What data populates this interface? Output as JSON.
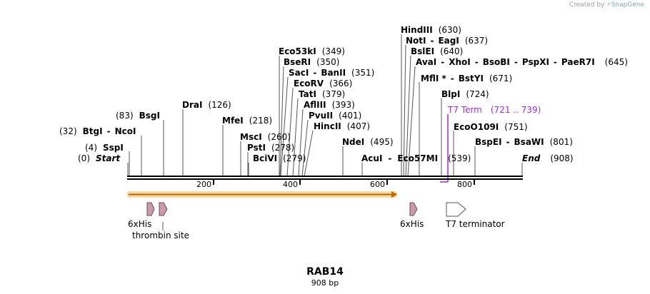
{
  "credit_prefix": "Created by",
  "credit_brand": "SnapGene",
  "title": "RAB14",
  "length_label": "908 bp",
  "total_bp": 908,
  "ticks": [
    {
      "label": "200",
      "bp": 200
    },
    {
      "label": "400",
      "bp": 400
    },
    {
      "label": "600",
      "bp": 600
    },
    {
      "label": "800",
      "bp": 800
    }
  ],
  "sites": [
    {
      "id": "hindiii",
      "name": "HindIII",
      "pos": "(630)",
      "bp": 630
    },
    {
      "id": "noti",
      "name": "NotI",
      "name2": "EagI",
      "pos": "(637)",
      "bp": 637
    },
    {
      "id": "bslei",
      "name": "BslEI",
      "pos": "(640)",
      "bp": 640
    },
    {
      "id": "avai",
      "name": "AvaI",
      "name2": "XhoI",
      "name3": "BsoBI",
      "name4": "PspXI",
      "name5": "PaeR7I",
      "pos": "(645)",
      "bp": 645
    },
    {
      "id": "mfli",
      "name": "MflI *",
      "name2": "BstYI",
      "pos": "(671)",
      "bp": 671
    },
    {
      "id": "blpi",
      "name": "BlpI",
      "pos": "(724)",
      "bp": 724
    },
    {
      "id": "t7term",
      "name": "T7 Term",
      "pos": "(721 .. 739)",
      "bp": 730
    },
    {
      "id": "eco53ki",
      "name": "Eco53kI",
      "pos": "(349)",
      "bp": 349
    },
    {
      "id": "beri",
      "name": "BseRI",
      "pos": "(350)",
      "bp": 350
    },
    {
      "id": "saci",
      "name": "SacI",
      "name2": "BanII",
      "pos": "(351)",
      "bp": 351
    },
    {
      "id": "ecorv",
      "name": "EcoRV",
      "pos": "(366)",
      "bp": 366
    },
    {
      "id": "tati",
      "name": "TatI",
      "pos": "(379)",
      "bp": 379
    },
    {
      "id": "aflii",
      "name": "AflIII",
      "pos": "(393)",
      "bp": 393
    },
    {
      "id": "pvuii",
      "name": "PvuII",
      "pos": "(401)",
      "bp": 401
    },
    {
      "id": "hincii",
      "name": "HincII",
      "pos": "(407)",
      "bp": 407
    },
    {
      "id": "drai",
      "name": "DraI",
      "pos": "(126)",
      "bp": 126
    },
    {
      "id": "bsgi",
      "name": "BsgI",
      "pos": "(83)",
      "bp": 83
    },
    {
      "id": "mfei",
      "name": "MfeI",
      "pos": "(218)",
      "bp": 218
    },
    {
      "id": "ecoo109i",
      "name": "EcoO109I",
      "pos": "(751)",
      "bp": 751
    },
    {
      "id": "btgi",
      "name": "BtgI",
      "name2": "NcoI",
      "pos": "(32)",
      "bp": 32
    },
    {
      "id": "msci",
      "name": "MscI",
      "pos": "(260)",
      "bp": 260
    },
    {
      "id": "ndei",
      "name": "NdeI",
      "pos": "(495)",
      "bp": 495
    },
    {
      "id": "bspei",
      "name": "BspEI",
      "name2": "BsaWI",
      "pos": "(801)",
      "bp": 801
    },
    {
      "id": "sspi",
      "name": "SspI",
      "pos": "(4)",
      "bp": 4
    },
    {
      "id": "psti",
      "name": "PstI",
      "pos": "(278)",
      "bp": 278
    },
    {
      "id": "start",
      "name": "Start",
      "pos": "(0)",
      "bp": 0
    },
    {
      "id": "bcivi",
      "name": "BciVI",
      "pos": "(279)",
      "bp": 279
    },
    {
      "id": "acui",
      "name": "AcuI",
      "name2": "Eco57MI",
      "pos": "(539)",
      "bp": 539
    },
    {
      "id": "end",
      "name": "End",
      "pos": "(908)",
      "bp": 908
    }
  ],
  "features": [
    {
      "id": "sixhis1",
      "label": "6xHis"
    },
    {
      "id": "thrombin",
      "label": "thrombin site"
    },
    {
      "id": "sixhis2",
      "label": "6xHis"
    },
    {
      "id": "t7terminator",
      "label": "T7 terminator"
    }
  ],
  "colors": {
    "orf_fill": "#f2c57a",
    "orf_edge": "#b36b00",
    "tag_fill": "#c99aac",
    "tag_edge": "#6e4a58",
    "term_fill": "#ffffff",
    "t7": "#9b30c8"
  }
}
